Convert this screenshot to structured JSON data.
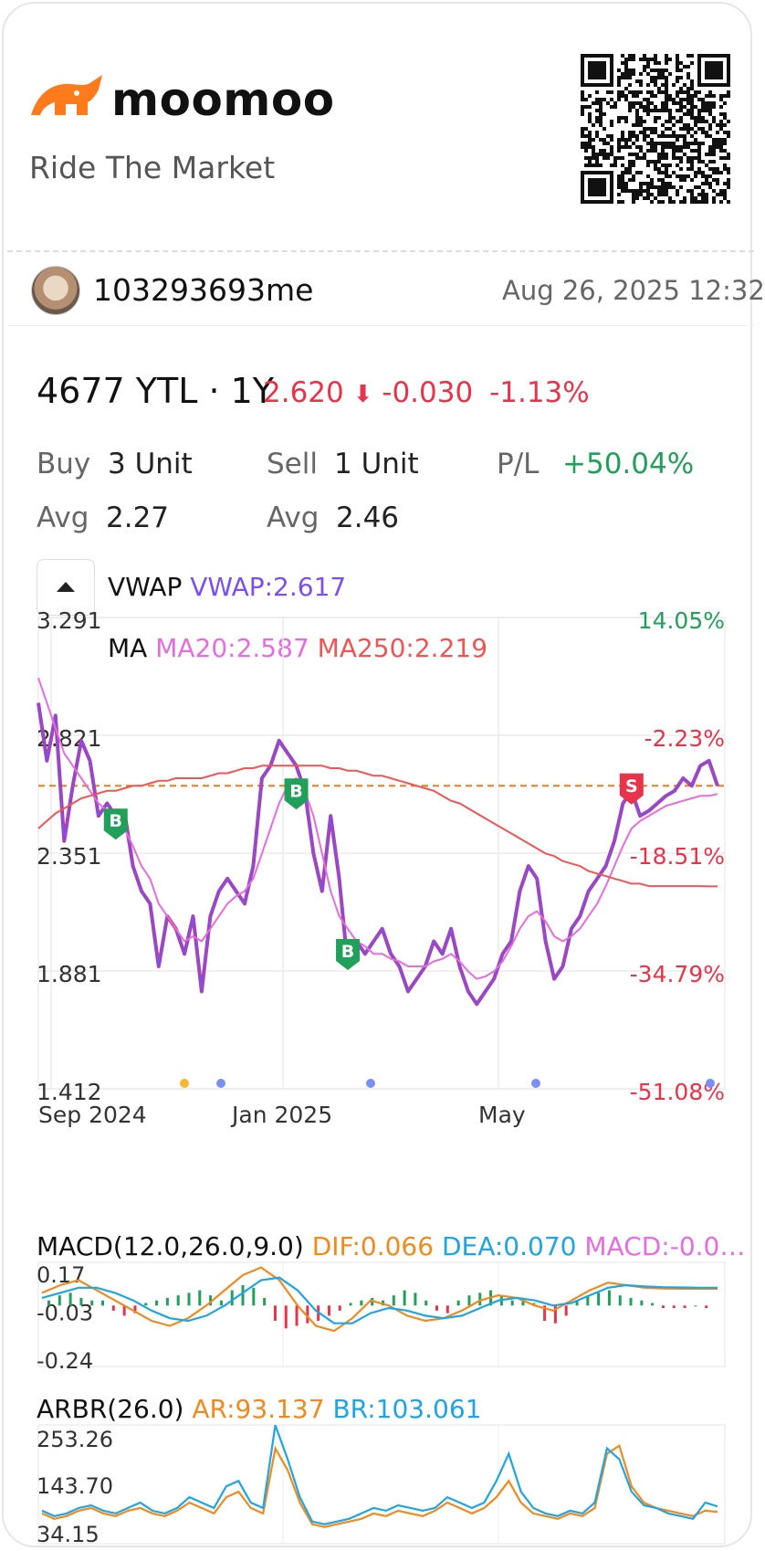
{
  "brand": {
    "name": "moomoo",
    "tagline": "Ride The Market"
  },
  "user": {
    "name": "103293693me",
    "timestamp": "Aug 26, 2025 12:32"
  },
  "quote": {
    "title": "4677 YTL · 1Y",
    "price": "2.620",
    "change": "-0.030",
    "change_pct": "-1.13%"
  },
  "position": {
    "buy_label": "Buy",
    "buy_value": "3 Unit",
    "sell_label": "Sell",
    "sell_value": "1 Unit",
    "pl_label": "P/L",
    "pl_value": "+50.04%",
    "avg_label": "Avg",
    "buy_avg": "2.27",
    "sell_avg": "2.46"
  },
  "indicators": {
    "vwap_label": "VWAP",
    "vwap_value": "VWAP:2.617",
    "ma_label": "MA",
    "ma20": "MA20:2.587",
    "ma250": "MA250:2.219"
  },
  "macd": {
    "label": "MACD(12.0,26.0,9.0)",
    "dif": "DIF:0.066",
    "dea": "DEA:0.070",
    "macd": "MACD:-0.0…"
  },
  "arbr": {
    "label": "ARBR(26.0)",
    "ar": "AR:93.137",
    "br": "BR:103.061"
  },
  "colors": {
    "up": "#21a05a",
    "down": "#e8334a",
    "price_line": "#7b4ff0",
    "ma20": "#e66ce0",
    "ma250": "#f05454",
    "dif": "#f08a1d",
    "dea": "#1ea5e3"
  },
  "chart_data": [
    {
      "type": "line",
      "title": "",
      "y_ticks": [
        "3.291",
        "2.821",
        "2.351",
        "1.881",
        "1.412"
      ],
      "pct_ticks": [
        "14.05%",
        "-2.23%",
        "-18.51%",
        "-34.79%",
        "-51.08%"
      ],
      "x_ticks": [
        "Sep 2024",
        "Jan 2025",
        "May"
      ],
      "ylim": [
        1.412,
        3.291
      ],
      "reference_price": 2.62,
      "trade_markers": [
        {
          "label": "B",
          "date_index": 9,
          "price": 2.5
        },
        {
          "label": "B",
          "date_index": 30,
          "price": 2.62
        },
        {
          "label": "B",
          "date_index": 36,
          "price": 1.98
        },
        {
          "label": "S",
          "date_index": 69,
          "price": 2.64
        }
      ],
      "series": [
        {
          "name": "VWAP",
          "values": [
            2.95,
            2.72,
            2.9,
            2.4,
            2.62,
            2.8,
            2.72,
            2.5,
            2.55,
            2.5,
            2.52,
            2.3,
            2.2,
            2.15,
            1.9,
            2.1,
            2.05,
            1.95,
            2.1,
            1.8,
            2.1,
            2.2,
            2.25,
            2.2,
            2.15,
            2.3,
            2.65,
            2.7,
            2.8,
            2.75,
            2.7,
            2.6,
            2.35,
            2.2,
            2.5,
            2.25,
            1.9,
            2.0,
            1.95,
            2.0,
            2.05,
            1.95,
            1.9,
            1.8,
            1.85,
            1.9,
            2.0,
            1.95,
            2.05,
            1.9,
            1.8,
            1.75,
            1.8,
            1.85,
            1.95,
            2.0,
            2.2,
            2.3,
            2.25,
            2.0,
            1.85,
            1.9,
            2.05,
            2.1,
            2.2,
            2.25,
            2.3,
            2.4,
            2.55,
            2.6,
            2.5,
            2.52,
            2.55,
            2.58,
            2.6,
            2.65,
            2.62,
            2.7,
            2.72,
            2.62
          ]
        },
        {
          "name": "MA20",
          "values": [
            3.05,
            2.95,
            2.85,
            2.75,
            2.7,
            2.65,
            2.6,
            2.55,
            2.52,
            2.5,
            2.45,
            2.38,
            2.3,
            2.25,
            2.15,
            2.1,
            2.05,
            2.0,
            2.02,
            2.0,
            2.05,
            2.1,
            2.15,
            2.18,
            2.2,
            2.25,
            2.35,
            2.45,
            2.55,
            2.62,
            2.65,
            2.6,
            2.5,
            2.35,
            2.2,
            2.1,
            2.05,
            2.0,
            1.98,
            1.95,
            1.95,
            1.93,
            1.92,
            1.9,
            1.9,
            1.9,
            1.92,
            1.93,
            1.95,
            1.92,
            1.88,
            1.85,
            1.86,
            1.88,
            1.92,
            1.98,
            2.05,
            2.1,
            2.12,
            2.08,
            2.02,
            2.0,
            2.02,
            2.05,
            2.1,
            2.15,
            2.22,
            2.3,
            2.38,
            2.45,
            2.48,
            2.5,
            2.52,
            2.54,
            2.55,
            2.56,
            2.57,
            2.58,
            2.58,
            2.587
          ]
        },
        {
          "name": "MA250",
          "values": [
            2.45,
            2.48,
            2.51,
            2.53,
            2.55,
            2.57,
            2.58,
            2.59,
            2.6,
            2.6,
            2.61,
            2.62,
            2.62,
            2.63,
            2.64,
            2.64,
            2.65,
            2.65,
            2.65,
            2.65,
            2.66,
            2.67,
            2.67,
            2.68,
            2.69,
            2.69,
            2.7,
            2.7,
            2.7,
            2.7,
            2.7,
            2.7,
            2.7,
            2.7,
            2.69,
            2.69,
            2.68,
            2.68,
            2.67,
            2.66,
            2.66,
            2.65,
            2.64,
            2.63,
            2.62,
            2.61,
            2.6,
            2.58,
            2.56,
            2.55,
            2.53,
            2.51,
            2.49,
            2.47,
            2.45,
            2.43,
            2.41,
            2.39,
            2.37,
            2.35,
            2.34,
            2.32,
            2.31,
            2.3,
            2.28,
            2.27,
            2.26,
            2.25,
            2.24,
            2.23,
            2.23,
            2.22,
            2.22,
            2.22,
            2.22,
            2.22,
            2.22,
            2.22,
            2.219,
            2.219
          ]
        }
      ]
    },
    {
      "type": "bar",
      "title": "MACD(12.0,26.0,9.0)",
      "y_ticks": [
        "0.17",
        "-0.03",
        "-0.24"
      ],
      "ylim": [
        -0.24,
        0.17
      ],
      "histogram": [
        0.02,
        0.04,
        0.05,
        0.03,
        0.02,
        0.02,
        -0.02,
        -0.04,
        -0.03,
        0.01,
        0.02,
        0.03,
        0.04,
        0.05,
        0.06,
        0.04,
        0.02,
        0.06,
        0.08,
        0.07,
        0.03,
        -0.06,
        -0.09,
        -0.08,
        -0.07,
        -0.06,
        -0.04,
        -0.02,
        0.01,
        0.02,
        0.03,
        0.02,
        0.04,
        0.06,
        0.05,
        0.02,
        -0.02,
        -0.03,
        0.02,
        0.04,
        0.05,
        0.06,
        0.04,
        0.02,
        0.03,
        0.01,
        -0.06,
        -0.07,
        -0.04,
        0.02,
        0.04,
        0.05,
        0.06,
        0.04,
        0.03,
        0.02,
        0.01,
        -0.01,
        -0.01,
        -0.01,
        0.0,
        -0.01
      ],
      "series": [
        {
          "name": "DIF",
          "values": [
            0.05,
            0.08,
            0.1,
            0.06,
            0.02,
            -0.02,
            -0.06,
            -0.08,
            -0.05,
            0.0,
            0.06,
            0.12,
            0.15,
            0.1,
            0.0,
            -0.08,
            -0.1,
            -0.05,
            0.02,
            0.0,
            -0.04,
            -0.06,
            -0.05,
            -0.02,
            0.02,
            0.04,
            0.03,
            0.0,
            -0.02,
            0.02,
            0.06,
            0.09,
            0.08,
            0.07,
            0.067,
            0.066,
            0.066,
            0.066
          ]
        },
        {
          "name": "DEA",
          "values": [
            0.03,
            0.05,
            0.07,
            0.07,
            0.05,
            0.02,
            -0.02,
            -0.05,
            -0.06,
            -0.04,
            0.0,
            0.05,
            0.1,
            0.11,
            0.06,
            -0.02,
            -0.07,
            -0.07,
            -0.03,
            -0.01,
            -0.02,
            -0.04,
            -0.05,
            -0.04,
            -0.01,
            0.02,
            0.03,
            0.02,
            0.0,
            0.01,
            0.04,
            0.07,
            0.08,
            0.075,
            0.072,
            0.071,
            0.07,
            0.07
          ]
        }
      ]
    },
    {
      "type": "line",
      "title": "ARBR(26.0)",
      "y_ticks": [
        "253.26",
        "143.70",
        "34.15"
      ],
      "ylim": [
        34.15,
        253.26
      ],
      "series": [
        {
          "name": "AR",
          "values": [
            90,
            80,
            85,
            95,
            100,
            90,
            85,
            95,
            100,
            90,
            85,
            95,
            110,
            100,
            90,
            120,
            130,
            100,
            90,
            210,
            170,
            110,
            70,
            65,
            70,
            75,
            80,
            90,
            85,
            95,
            90,
            85,
            95,
            110,
            100,
            90,
            100,
            120,
            150,
            110,
            90,
            85,
            80,
            90,
            85,
            100,
            200,
            215,
            140,
            110,
            100,
            95,
            90,
            85,
            95,
            93
          ]
        },
        {
          "name": "BR",
          "values": [
            95,
            85,
            90,
            100,
            105,
            95,
            90,
            100,
            110,
            95,
            90,
            100,
            120,
            110,
            100,
            140,
            150,
            110,
            100,
            253,
            190,
            120,
            75,
            70,
            75,
            80,
            90,
            100,
            95,
            105,
            100,
            95,
            100,
            120,
            110,
            100,
            110,
            150,
            200,
            130,
            100,
            90,
            85,
            95,
            90,
            110,
            210,
            190,
            130,
            105,
            100,
            90,
            85,
            80,
            110,
            103
          ]
        }
      ]
    }
  ]
}
